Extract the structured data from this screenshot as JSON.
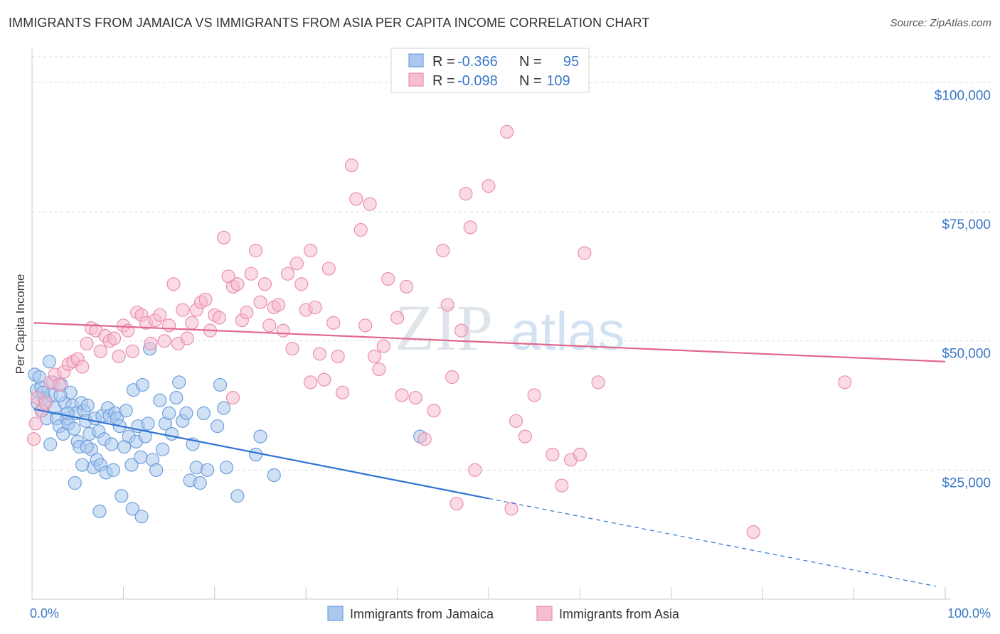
{
  "chart_data": {
    "type": "scatter",
    "title": "IMMIGRANTS FROM JAMAICA VS IMMIGRANTS FROM ASIA PER CAPITA INCOME CORRELATION CHART",
    "source": "Source: ZipAtlas.com",
    "xlabel": "",
    "ylabel": "Per Capita Income",
    "xlim": [
      0,
      100
    ],
    "ylim": [
      0,
      105000
    ],
    "x_tick_labels": [
      "0.0%",
      "100.0%"
    ],
    "y_ticks": [
      {
        "value": 25000,
        "label": "$25,000"
      },
      {
        "value": 50000,
        "label": "$50,000"
      },
      {
        "value": 75000,
        "label": "$75,000"
      },
      {
        "value": 100000,
        "label": "$100,000"
      }
    ],
    "watermark": {
      "part1": "ZIP",
      "part2": "atlas"
    },
    "legend": {
      "r_label": "R =",
      "n_label": "N =",
      "entries": [
        {
          "name": "Immigrants from Jamaica",
          "r": "-0.366",
          "n": "95"
        },
        {
          "name": "Immigrants from Asia",
          "r": "-0.098",
          "n": "109"
        }
      ]
    },
    "colors": {
      "jamaica_fill": "#aac8ee",
      "jamaica_stroke": "#6f9fdc",
      "jamaica_line": "#2e74d4",
      "asia_fill": "#f6bccf",
      "asia_stroke": "#ea8fae",
      "asia_line": "#e2668f",
      "grid": "#dcdcdc",
      "tick": "#3a78c8"
    },
    "series": [
      {
        "name": "Immigrants from Jamaica",
        "trend": {
          "x0": 0.2,
          "y0": 36800,
          "x1": 50,
          "y1": 19500,
          "dash_x1": 99,
          "dash_y1": 2500
        },
        "points": [
          [
            0.3,
            43500
          ],
          [
            0.5,
            40500
          ],
          [
            0.6,
            38000
          ],
          [
            0.8,
            43000
          ],
          [
            1.0,
            41000
          ],
          [
            1.1,
            36500
          ],
          [
            1.3,
            39000
          ],
          [
            1.5,
            38500
          ],
          [
            1.6,
            35000
          ],
          [
            1.9,
            46000
          ],
          [
            2.1,
            39500
          ],
          [
            2.3,
            42000
          ],
          [
            2.5,
            37000
          ],
          [
            2.7,
            35000
          ],
          [
            3.0,
            33500
          ],
          [
            3.2,
            41500
          ],
          [
            3.4,
            32000
          ],
          [
            3.6,
            38000
          ],
          [
            3.8,
            35000
          ],
          [
            4.0,
            34000
          ],
          [
            4.2,
            40000
          ],
          [
            4.4,
            37500
          ],
          [
            4.6,
            33000
          ],
          [
            4.8,
            36000
          ],
          [
            5.0,
            30500
          ],
          [
            5.2,
            29500
          ],
          [
            5.4,
            38000
          ],
          [
            5.7,
            36500
          ],
          [
            5.9,
            34500
          ],
          [
            6.1,
            37500
          ],
          [
            6.3,
            32000
          ],
          [
            6.5,
            29000
          ],
          [
            6.7,
            25500
          ],
          [
            6.9,
            35000
          ],
          [
            7.1,
            27000
          ],
          [
            7.3,
            32500
          ],
          [
            7.5,
            26000
          ],
          [
            7.7,
            35500
          ],
          [
            7.9,
            31000
          ],
          [
            8.1,
            24500
          ],
          [
            8.3,
            37000
          ],
          [
            8.5,
            35500
          ],
          [
            8.7,
            30000
          ],
          [
            8.9,
            25000
          ],
          [
            9.1,
            36000
          ],
          [
            9.3,
            35000
          ],
          [
            9.6,
            33500
          ],
          [
            9.8,
            20000
          ],
          [
            10.1,
            29500
          ],
          [
            10.3,
            36500
          ],
          [
            10.6,
            31500
          ],
          [
            10.9,
            26000
          ],
          [
            11.1,
            40500
          ],
          [
            11.4,
            30500
          ],
          [
            11.6,
            33500
          ],
          [
            11.9,
            27500
          ],
          [
            12.1,
            41500
          ],
          [
            12.4,
            31500
          ],
          [
            12.7,
            34000
          ],
          [
            12.9,
            48500
          ],
          [
            13.2,
            27000
          ],
          [
            13.6,
            25000
          ],
          [
            14.0,
            38500
          ],
          [
            14.3,
            29000
          ],
          [
            14.6,
            34000
          ],
          [
            15.0,
            36000
          ],
          [
            15.3,
            32000
          ],
          [
            15.8,
            39000
          ],
          [
            16.1,
            42000
          ],
          [
            16.5,
            34500
          ],
          [
            16.9,
            36000
          ],
          [
            17.3,
            23000
          ],
          [
            17.6,
            30000
          ],
          [
            18.0,
            25500
          ],
          [
            18.4,
            22500
          ],
          [
            18.8,
            36000
          ],
          [
            19.2,
            25000
          ],
          [
            20.3,
            33500
          ],
          [
            20.6,
            41500
          ],
          [
            21.0,
            37000
          ],
          [
            21.3,
            25500
          ],
          [
            22.5,
            20000
          ],
          [
            24.5,
            28000
          ],
          [
            25.0,
            31500
          ],
          [
            26.5,
            24000
          ],
          [
            3.1,
            39500
          ],
          [
            2.0,
            30000
          ],
          [
            5.5,
            26000
          ],
          [
            6.0,
            29500
          ],
          [
            1.2,
            40000
          ],
          [
            4.7,
            22500
          ],
          [
            3.9,
            36000
          ],
          [
            7.4,
            17000
          ],
          [
            11.0,
            17500
          ],
          [
            12.0,
            16000
          ],
          [
            42.5,
            31500
          ]
        ]
      },
      {
        "name": "Immigrants from Asia",
        "trend": {
          "x0": 0.2,
          "y0": 53500,
          "x1": 100,
          "y1": 46000
        },
        "points": [
          [
            0.2,
            31000
          ],
          [
            0.4,
            34000
          ],
          [
            0.6,
            39000
          ],
          [
            1.0,
            36500
          ],
          [
            1.5,
            38000
          ],
          [
            2.0,
            42000
          ],
          [
            2.5,
            43500
          ],
          [
            3.0,
            41500
          ],
          [
            3.5,
            44000
          ],
          [
            4.0,
            45500
          ],
          [
            4.5,
            46000
          ],
          [
            5.0,
            46500
          ],
          [
            5.5,
            45000
          ],
          [
            6.0,
            49500
          ],
          [
            6.5,
            52500
          ],
          [
            7.0,
            52000
          ],
          [
            7.5,
            48000
          ],
          [
            8.0,
            51000
          ],
          [
            8.5,
            50000
          ],
          [
            9.0,
            50500
          ],
          [
            9.5,
            47000
          ],
          [
            10.0,
            53000
          ],
          [
            10.5,
            52000
          ],
          [
            11.0,
            48000
          ],
          [
            11.5,
            55500
          ],
          [
            12.0,
            55000
          ],
          [
            12.5,
            53500
          ],
          [
            13.0,
            49500
          ],
          [
            13.5,
            54000
          ],
          [
            14.0,
            55000
          ],
          [
            14.5,
            50000
          ],
          [
            15.0,
            53000
          ],
          [
            15.5,
            61000
          ],
          [
            16.0,
            49500
          ],
          [
            16.5,
            56000
          ],
          [
            17.0,
            50500
          ],
          [
            17.5,
            53500
          ],
          [
            18.0,
            56000
          ],
          [
            18.5,
            57500
          ],
          [
            19.0,
            58000
          ],
          [
            19.5,
            52000
          ],
          [
            20.0,
            55000
          ],
          [
            20.5,
            54500
          ],
          [
            21.0,
            70000
          ],
          [
            21.5,
            62500
          ],
          [
            22.0,
            60500
          ],
          [
            22.5,
            61000
          ],
          [
            23.0,
            54000
          ],
          [
            23.5,
            55500
          ],
          [
            24.0,
            63000
          ],
          [
            24.5,
            67500
          ],
          [
            25.0,
            57500
          ],
          [
            25.5,
            61000
          ],
          [
            26.0,
            53000
          ],
          [
            26.5,
            56500
          ],
          [
            27.0,
            57000
          ],
          [
            27.5,
            52000
          ],
          [
            28.0,
            63000
          ],
          [
            28.5,
            48500
          ],
          [
            29.0,
            65000
          ],
          [
            29.5,
            61000
          ],
          [
            30.0,
            56000
          ],
          [
            30.5,
            67500
          ],
          [
            31.0,
            56500
          ],
          [
            31.5,
            47500
          ],
          [
            32.0,
            42500
          ],
          [
            32.5,
            64000
          ],
          [
            33.0,
            53500
          ],
          [
            33.5,
            47000
          ],
          [
            34.0,
            40000
          ],
          [
            35.0,
            84000
          ],
          [
            35.5,
            77500
          ],
          [
            36.0,
            71500
          ],
          [
            36.5,
            53000
          ],
          [
            37.0,
            76500
          ],
          [
            37.5,
            47000
          ],
          [
            38.0,
            44500
          ],
          [
            38.5,
            49000
          ],
          [
            39.0,
            62000
          ],
          [
            40.0,
            54500
          ],
          [
            40.5,
            39500
          ],
          [
            41.0,
            60500
          ],
          [
            42.0,
            39000
          ],
          [
            43.0,
            31000
          ],
          [
            44.0,
            36500
          ],
          [
            45.0,
            67500
          ],
          [
            45.5,
            57000
          ],
          [
            46.0,
            43000
          ],
          [
            47.0,
            52000
          ],
          [
            47.5,
            78500
          ],
          [
            48.0,
            72000
          ],
          [
            48.5,
            25000
          ],
          [
            50.0,
            80000
          ],
          [
            52.0,
            90500
          ],
          [
            52.5,
            17500
          ],
          [
            53.0,
            34500
          ],
          [
            54.0,
            31500
          ],
          [
            55.0,
            39500
          ],
          [
            57.0,
            28000
          ],
          [
            58.0,
            22000
          ],
          [
            59.0,
            27000
          ],
          [
            60.0,
            28000
          ],
          [
            60.5,
            67000
          ],
          [
            62.0,
            42000
          ],
          [
            79.0,
            13000
          ],
          [
            89.0,
            42000
          ],
          [
            22.0,
            39000
          ],
          [
            30.5,
            42000
          ],
          [
            46.5,
            18500
          ]
        ]
      }
    ]
  }
}
